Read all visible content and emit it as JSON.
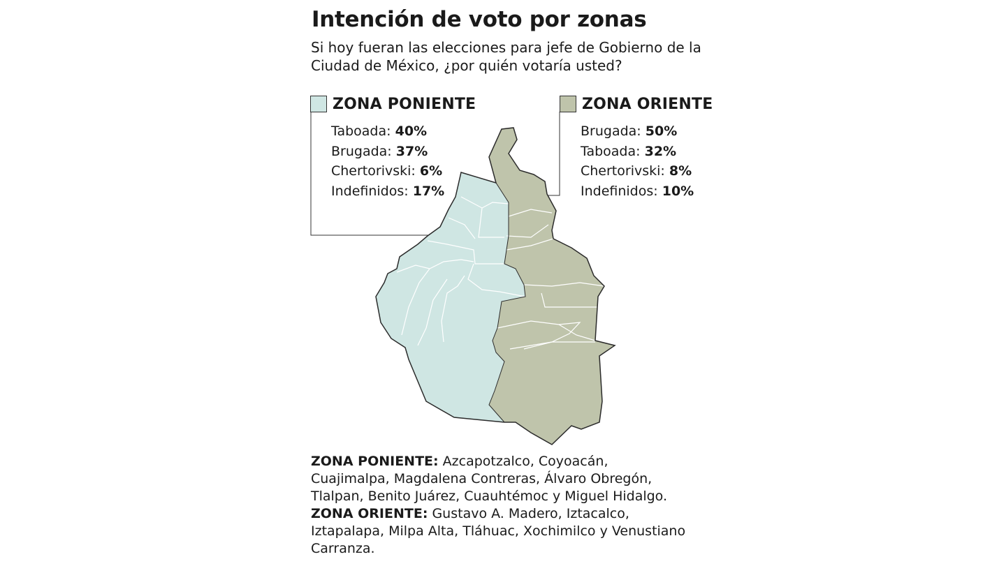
{
  "title": "Intención de voto por zonas",
  "subtitle": "Si hoy fueran las elecciones para jefe de Gobierno de la Ciudad de México, ¿por quién votaría usted?",
  "colors": {
    "poniente": "#cfe6e3",
    "oriente": "#bfc4ab",
    "border": "#2b2b2b"
  },
  "zones": {
    "poniente": {
      "title": "ZONA PONIENTE",
      "results": [
        {
          "name": "Taboada:",
          "pct": "40%"
        },
        {
          "name": "Brugada:",
          "pct": "37%"
        },
        {
          "name": "Chertorivski:",
          "pct": "6%"
        },
        {
          "name": "Indefinidos:",
          "pct": "17%"
        }
      ]
    },
    "oriente": {
      "title": "ZONA ORIENTE",
      "results": [
        {
          "name": "Brugada:",
          "pct": "50%"
        },
        {
          "name": "Taboada:",
          "pct": "32%"
        },
        {
          "name": "Chertorivski:",
          "pct": "8%"
        },
        {
          "name": "Indefinidos:",
          "pct": "10%"
        }
      ]
    }
  },
  "legend": {
    "poniente_label": "ZONA PONIENTE:",
    "poniente_text": " Azcapotzalco, Coyoacán, Cuajimalpa, Magdalena Contreras, Álvaro Obregón, Tlalpan, Benito Juárez, Cuauhtémoc y Miguel Hidalgo.",
    "oriente_label": "ZONA ORIENTE:",
    "oriente_text": " Gustavo A. Madero, Iztacalco, Iztapalapa, Milpa Alta, Tláhuac, Xochimilco y Venustiano Carranza."
  }
}
